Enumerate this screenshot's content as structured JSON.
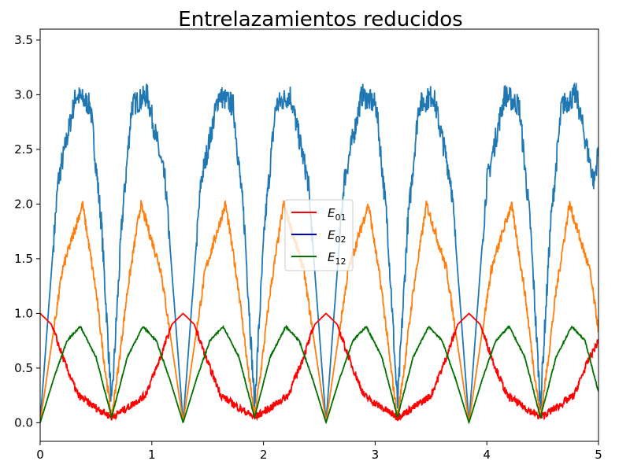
{
  "chart_data": {
    "type": "line",
    "title": "Entrelazamientos reducidos",
    "xlabel": "",
    "ylabel": "",
    "xlim": [
      0,
      5
    ],
    "ylim": [
      -0.17,
      3.6
    ],
    "x_ticks": [
      0,
      1,
      2,
      3,
      4,
      5
    ],
    "y_ticks": [
      0.0,
      0.5,
      1.0,
      1.5,
      2.0,
      2.5,
      3.0,
      3.5
    ],
    "x_tick_labels": [
      "0",
      "1",
      "2",
      "3",
      "4",
      "5"
    ],
    "y_tick_labels": [
      "0.0",
      "0.5",
      "1.0",
      "1.5",
      "2.0",
      "2.5",
      "3.0",
      "3.5"
    ],
    "grid": false,
    "legend_position": "center",
    "legend": [
      {
        "symbol": "E",
        "sub": "01",
        "color": "#ff0000"
      },
      {
        "symbol": "E",
        "sub": "02",
        "color": "#0000cc"
      },
      {
        "symbol": "E",
        "sub": "12",
        "color": "#007000"
      }
    ],
    "series": [
      {
        "color": "#1f77b4",
        "x": [
          0,
          0.16,
          0.32,
          0.45,
          0.55,
          0.64,
          0.73,
          0.82,
          0.96,
          1.12,
          1.28,
          1.44,
          1.6,
          1.73,
          1.83,
          1.92,
          2.01,
          2.11,
          2.24,
          2.4,
          2.56,
          2.72,
          2.88,
          3.01,
          3.11,
          3.2,
          3.29,
          3.39,
          3.52,
          3.68,
          3.84,
          4.0,
          4.16,
          4.29,
          4.39,
          4.48,
          4.57,
          4.67,
          4.8,
          4.96,
          5.0
        ],
        "y": [
          0,
          2.2,
          3.0,
          2.9,
          1.8,
          0.15,
          1.8,
          2.9,
          3.0,
          2.2,
          0,
          2.2,
          3.0,
          2.9,
          1.8,
          0.15,
          1.8,
          2.9,
          3.0,
          2.2,
          0,
          2.2,
          3.0,
          2.9,
          1.8,
          0.15,
          1.8,
          2.9,
          3.0,
          2.2,
          0,
          2.2,
          3.0,
          2.9,
          1.8,
          0.15,
          1.8,
          2.9,
          3.0,
          2.2,
          2.5
        ]
      },
      {
        "color": "#ff7f0e",
        "x": [
          0,
          0.2,
          0.38,
          0.5,
          0.58,
          0.64,
          0.7,
          0.78,
          0.9,
          1.08,
          1.28,
          1.48,
          1.66,
          1.78,
          1.86,
          1.92,
          1.98,
          2.06,
          2.18,
          2.36,
          2.56,
          2.76,
          2.94,
          3.06,
          3.14,
          3.2,
          3.26,
          3.34,
          3.46,
          3.64,
          3.84,
          4.04,
          4.22,
          4.34,
          4.42,
          4.48,
          4.54,
          4.62,
          4.74,
          4.92,
          5.0
        ],
        "y": [
          0,
          1.4,
          2.0,
          1.2,
          0.5,
          0.05,
          0.5,
          1.2,
          2.0,
          1.4,
          0,
          1.4,
          2.0,
          1.2,
          0.5,
          0.05,
          0.5,
          1.2,
          2.0,
          1.4,
          0,
          1.4,
          2.0,
          1.2,
          0.5,
          0.05,
          0.5,
          1.2,
          2.0,
          1.4,
          0,
          1.4,
          2.0,
          1.2,
          0.5,
          0.05,
          0.5,
          1.2,
          2.0,
          1.4,
          0.85
        ]
      },
      {
        "color": "#ff0000",
        "x": [
          0,
          0.1,
          0.22,
          0.34,
          0.48,
          0.64,
          0.8,
          0.94,
          1.06,
          1.18,
          1.28,
          1.38,
          1.5,
          1.62,
          1.76,
          1.92,
          2.08,
          2.22,
          2.34,
          2.46,
          2.56,
          2.66,
          2.78,
          2.9,
          3.04,
          3.2,
          3.36,
          3.5,
          3.62,
          3.74,
          3.84,
          3.94,
          4.06,
          4.18,
          4.32,
          4.48,
          4.64,
          4.78,
          4.9,
          5.0
        ],
        "y": [
          1.0,
          0.9,
          0.55,
          0.25,
          0.15,
          0.05,
          0.15,
          0.25,
          0.55,
          0.9,
          1.0,
          0.9,
          0.55,
          0.25,
          0.15,
          0.05,
          0.15,
          0.25,
          0.55,
          0.9,
          1.0,
          0.9,
          0.55,
          0.25,
          0.15,
          0.05,
          0.15,
          0.25,
          0.55,
          0.9,
          1.0,
          0.9,
          0.55,
          0.25,
          0.15,
          0.05,
          0.15,
          0.25,
          0.55,
          0.75
        ]
      },
      {
        "color": "#007000",
        "x": [
          0,
          0.12,
          0.24,
          0.36,
          0.5,
          0.64,
          0.78,
          0.92,
          1.04,
          1.16,
          1.28,
          1.4,
          1.52,
          1.64,
          1.78,
          1.92,
          2.06,
          2.2,
          2.32,
          2.44,
          2.56,
          2.68,
          2.8,
          2.92,
          3.06,
          3.2,
          3.34,
          3.48,
          3.6,
          3.72,
          3.84,
          3.96,
          4.08,
          4.2,
          4.34,
          4.48,
          4.62,
          4.76,
          4.88,
          5.0
        ],
        "y": [
          0,
          0.4,
          0.75,
          0.88,
          0.6,
          0.05,
          0.6,
          0.88,
          0.75,
          0.4,
          0,
          0.4,
          0.75,
          0.88,
          0.6,
          0.05,
          0.6,
          0.88,
          0.75,
          0.4,
          0,
          0.4,
          0.75,
          0.88,
          0.6,
          0.05,
          0.6,
          0.88,
          0.75,
          0.4,
          0,
          0.4,
          0.75,
          0.88,
          0.6,
          0.05,
          0.6,
          0.88,
          0.75,
          0.28
        ]
      }
    ]
  }
}
